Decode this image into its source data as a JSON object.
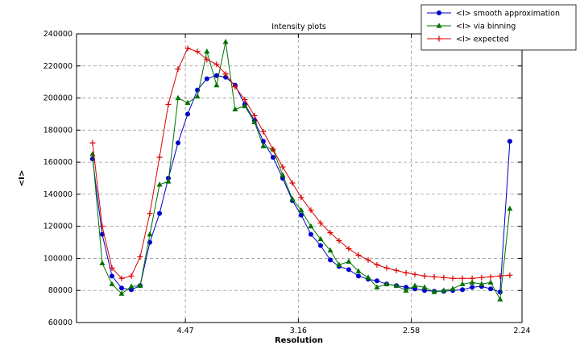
{
  "chart_data": {
    "type": "line",
    "title": "Intensity plots",
    "xlabel": "Resolution",
    "ylabel": "<I>",
    "xlim": [
      0.0018,
      0.1993
    ],
    "ylim": [
      60000,
      240000
    ],
    "grid": true,
    "legend_position": "top-right",
    "xticks": [
      {
        "value": 0.05005,
        "label": "4.47"
      },
      {
        "value": 0.10014,
        "label": "3.16"
      },
      {
        "value": 0.15023,
        "label": "2.58"
      },
      {
        "value": 0.1993,
        "label": "2.24"
      }
    ],
    "yticks": [
      {
        "value": 60000,
        "label": "60000"
      },
      {
        "value": 80000,
        "label": "80000"
      },
      {
        "value": 100000,
        "label": "100000"
      },
      {
        "value": 120000,
        "label": "120000"
      },
      {
        "value": 140000,
        "label": "140000"
      },
      {
        "value": 160000,
        "label": "160000"
      },
      {
        "value": 180000,
        "label": "180000"
      },
      {
        "value": 200000,
        "label": "200000"
      },
      {
        "value": 220000,
        "label": "220000"
      },
      {
        "value": 240000,
        "label": "240000"
      }
    ],
    "x": [
      0.0089,
      0.0132,
      0.0175,
      0.0218,
      0.0261,
      0.03,
      0.0343,
      0.0386,
      0.0425,
      0.0468,
      0.0511,
      0.0554,
      0.0596,
      0.0639,
      0.0679,
      0.0721,
      0.0764,
      0.0807,
      0.0846,
      0.0889,
      0.0932,
      0.0975,
      0.1014,
      0.1057,
      0.11,
      0.1143,
      0.1182,
      0.1225,
      0.1268,
      0.1311,
      0.135,
      0.1393,
      0.1436,
      0.1479,
      0.1518,
      0.1561,
      0.1604,
      0.1646,
      0.1686,
      0.1729,
      0.1772,
      0.1814,
      0.1854,
      0.1896,
      0.1939
    ],
    "series": [
      {
        "name": "<I> smooth approximation",
        "color": "#0000cc",
        "marker": "circle",
        "values": [
          162000,
          115000,
          89000,
          81500,
          80500,
          83000,
          110000,
          128000,
          150000,
          172000,
          190000,
          205000,
          212000,
          214000,
          213000,
          208000,
          196000,
          186000,
          173000,
          163000,
          150000,
          136000,
          127000,
          115000,
          108000,
          99000,
          95000,
          93000,
          89000,
          87000,
          86000,
          84000,
          83000,
          82000,
          81000,
          80000,
          79500,
          79500,
          80000,
          80500,
          82000,
          82500,
          81000,
          79000,
          173000
        ]
      },
      {
        "name": "<I> via binning",
        "color": "#007200",
        "marker": "triangle",
        "values": [
          165000,
          97000,
          84000,
          78000,
          82500,
          83000,
          115000,
          146000,
          148000,
          200000,
          197000,
          201000,
          229000,
          208000,
          235000,
          193000,
          195000,
          185000,
          170000,
          168000,
          152000,
          137000,
          130000,
          120000,
          112000,
          105000,
          96000,
          98000,
          92000,
          88000,
          82000,
          84000,
          83000,
          80000,
          83000,
          82000,
          79000,
          80000,
          81000,
          84000,
          85000,
          84000,
          85000,
          74500,
          131000
        ]
      },
      {
        "name": "<I> expected",
        "color": "#dd0000",
        "marker": "plus",
        "values": [
          172000,
          120000,
          94000,
          87500,
          89000,
          101000,
          128000,
          163000,
          196000,
          218000,
          231000,
          229000,
          224000,
          221000,
          215000,
          207000,
          199000,
          189000,
          179000,
          168000,
          157000,
          147000,
          138000,
          130000,
          122000,
          116000,
          111000,
          106000,
          102000,
          99000,
          96000,
          94000,
          92500,
          91000,
          90000,
          89000,
          88500,
          88000,
          87500,
          87500,
          87500,
          88000,
          88500,
          89000,
          89500
        ]
      }
    ]
  }
}
